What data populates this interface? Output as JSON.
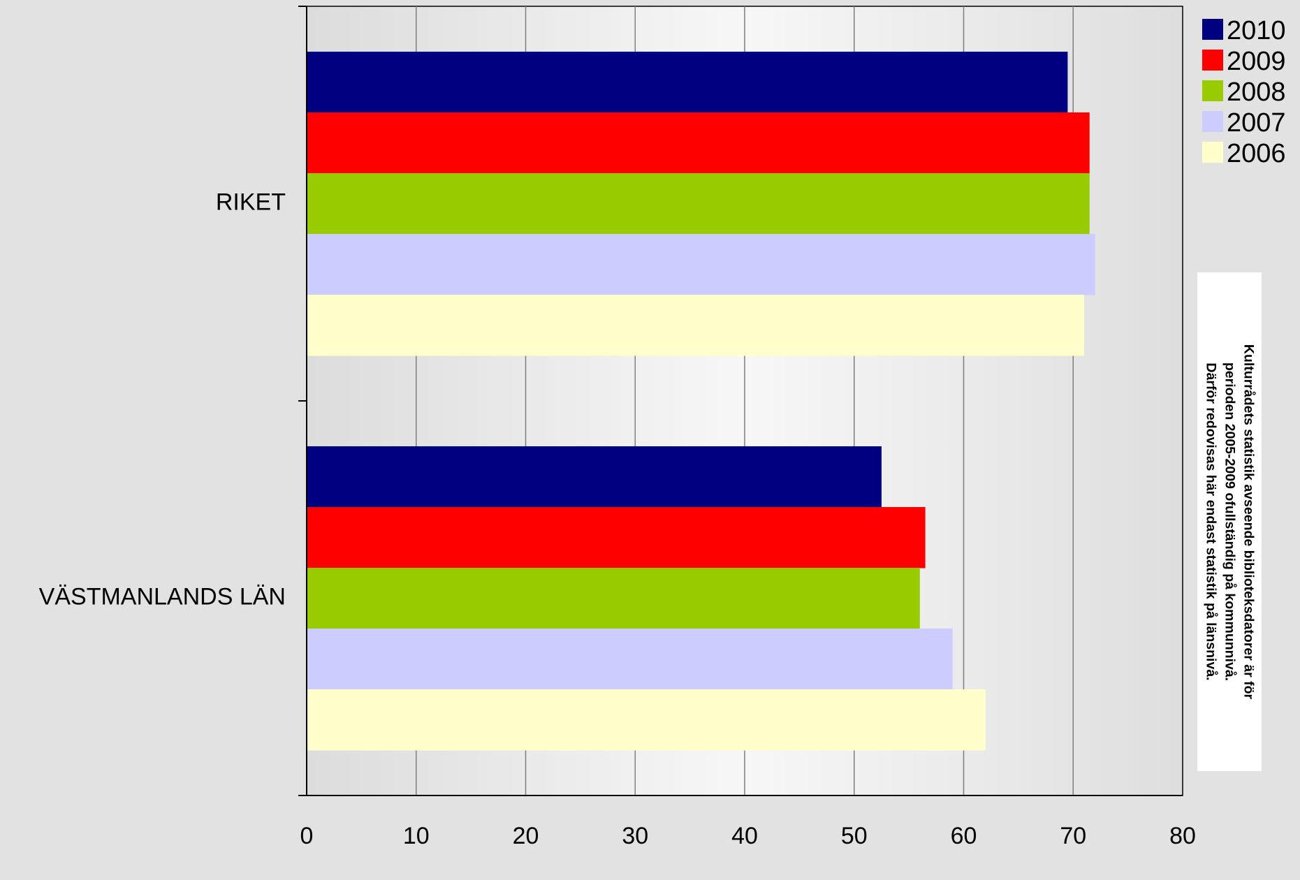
{
  "chart_data": {
    "type": "bar",
    "orientation": "horizontal",
    "categories": [
      "RIKET",
      "VÄSTMANLANDS LÄN"
    ],
    "series": [
      {
        "name": "2010",
        "color": "#000080",
        "values": [
          69.5,
          52.5
        ]
      },
      {
        "name": "2009",
        "color": "#ff0000",
        "values": [
          71.5,
          56.5
        ]
      },
      {
        "name": "2008",
        "color": "#99cc00",
        "values": [
          71.5,
          56
        ]
      },
      {
        "name": "2007",
        "color": "#ccccff",
        "values": [
          72,
          59
        ]
      },
      {
        "name": "2006",
        "color": "#ffffcc",
        "values": [
          71,
          62
        ]
      }
    ],
    "xlim": [
      0,
      80
    ],
    "xticks": [
      "0",
      "10",
      "20",
      "30",
      "40",
      "50",
      "60",
      "70",
      "80"
    ],
    "grid": "vertical",
    "legend_position": "top-right"
  },
  "note": {
    "text": "Kulturrådets statistik avseende biblioteksdatorer är för\nperioden 2005-2009 ofullständig på kommunnivå.\nDärför redovisas här endast statistik på länsnivå."
  }
}
